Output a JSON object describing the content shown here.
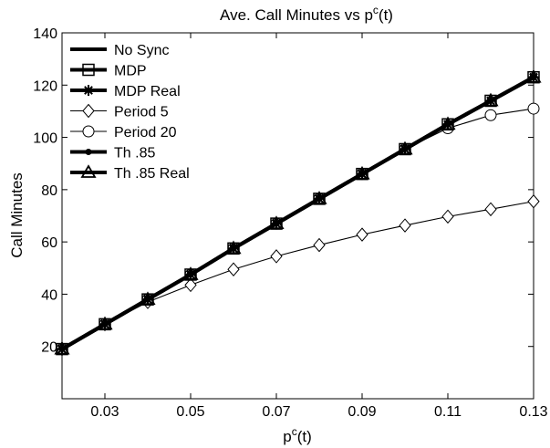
{
  "chart_data": {
    "type": "line",
    "title_main": "Ave. Call Minutes vs p",
    "title_sup": "c",
    "title_tail": "(t)",
    "xlabel_main": "p",
    "xlabel_sup": "c",
    "xlabel_tail": "(t)",
    "ylabel": "Call Minutes",
    "xlim": [
      0.02,
      0.13
    ],
    "ylim": [
      0,
      140
    ],
    "xticks": [
      "0.03",
      "0.05",
      "0.07",
      "0.09",
      "0.11",
      "0.13"
    ],
    "yticks": [
      "20",
      "40",
      "60",
      "80",
      "100",
      "120",
      "140"
    ],
    "grid": false,
    "legend_position": "top-left",
    "x": [
      0.02,
      0.03,
      0.04,
      0.05,
      0.06,
      0.07,
      0.08,
      0.09,
      0.1,
      0.11,
      0.12,
      0.13
    ],
    "series": [
      {
        "name": "No Sync",
        "marker": "none",
        "stroke": "thick",
        "color": "#000000",
        "values": [
          19,
          28.5,
          38,
          47.5,
          57.5,
          67,
          76.5,
          86,
          95.5,
          105,
          114,
          123
        ]
      },
      {
        "name": "MDP",
        "marker": "square",
        "stroke": "thick",
        "color": "#000000",
        "values": [
          19,
          28.5,
          38,
          47.5,
          57.5,
          67,
          76.5,
          86,
          95.5,
          105,
          114,
          123
        ]
      },
      {
        "name": "MDP Real",
        "marker": "asterisk",
        "stroke": "thick",
        "color": "#000000",
        "values": [
          19,
          28.5,
          38,
          47.5,
          57.5,
          67,
          76.5,
          86,
          95.5,
          105,
          114,
          123
        ]
      },
      {
        "name": "Period 5",
        "marker": "diamond",
        "stroke": "thin",
        "color": "#000000",
        "values": [
          19,
          28.5,
          37,
          43.5,
          49.5,
          54.5,
          58.8,
          62.8,
          66.3,
          69.7,
          72.5,
          75.5
        ]
      },
      {
        "name": "Period 20",
        "marker": "circle",
        "stroke": "thin",
        "color": "#000000",
        "values": [
          19,
          28.5,
          38,
          47.5,
          57.5,
          67,
          76.5,
          86,
          95.5,
          103.5,
          108.5,
          111
        ]
      },
      {
        "name": "Th .85",
        "marker": "dot",
        "stroke": "thick",
        "color": "#000000",
        "values": [
          19,
          28.5,
          38,
          47.5,
          57.5,
          67,
          76.5,
          86,
          95.5,
          105,
          114,
          123
        ]
      },
      {
        "name": "Th .85 Real",
        "marker": "triangle",
        "stroke": "thick",
        "color": "#000000",
        "values": [
          19,
          28.5,
          38,
          47.5,
          57.5,
          67,
          76.5,
          86,
          95.5,
          105,
          114,
          123
        ]
      }
    ]
  }
}
